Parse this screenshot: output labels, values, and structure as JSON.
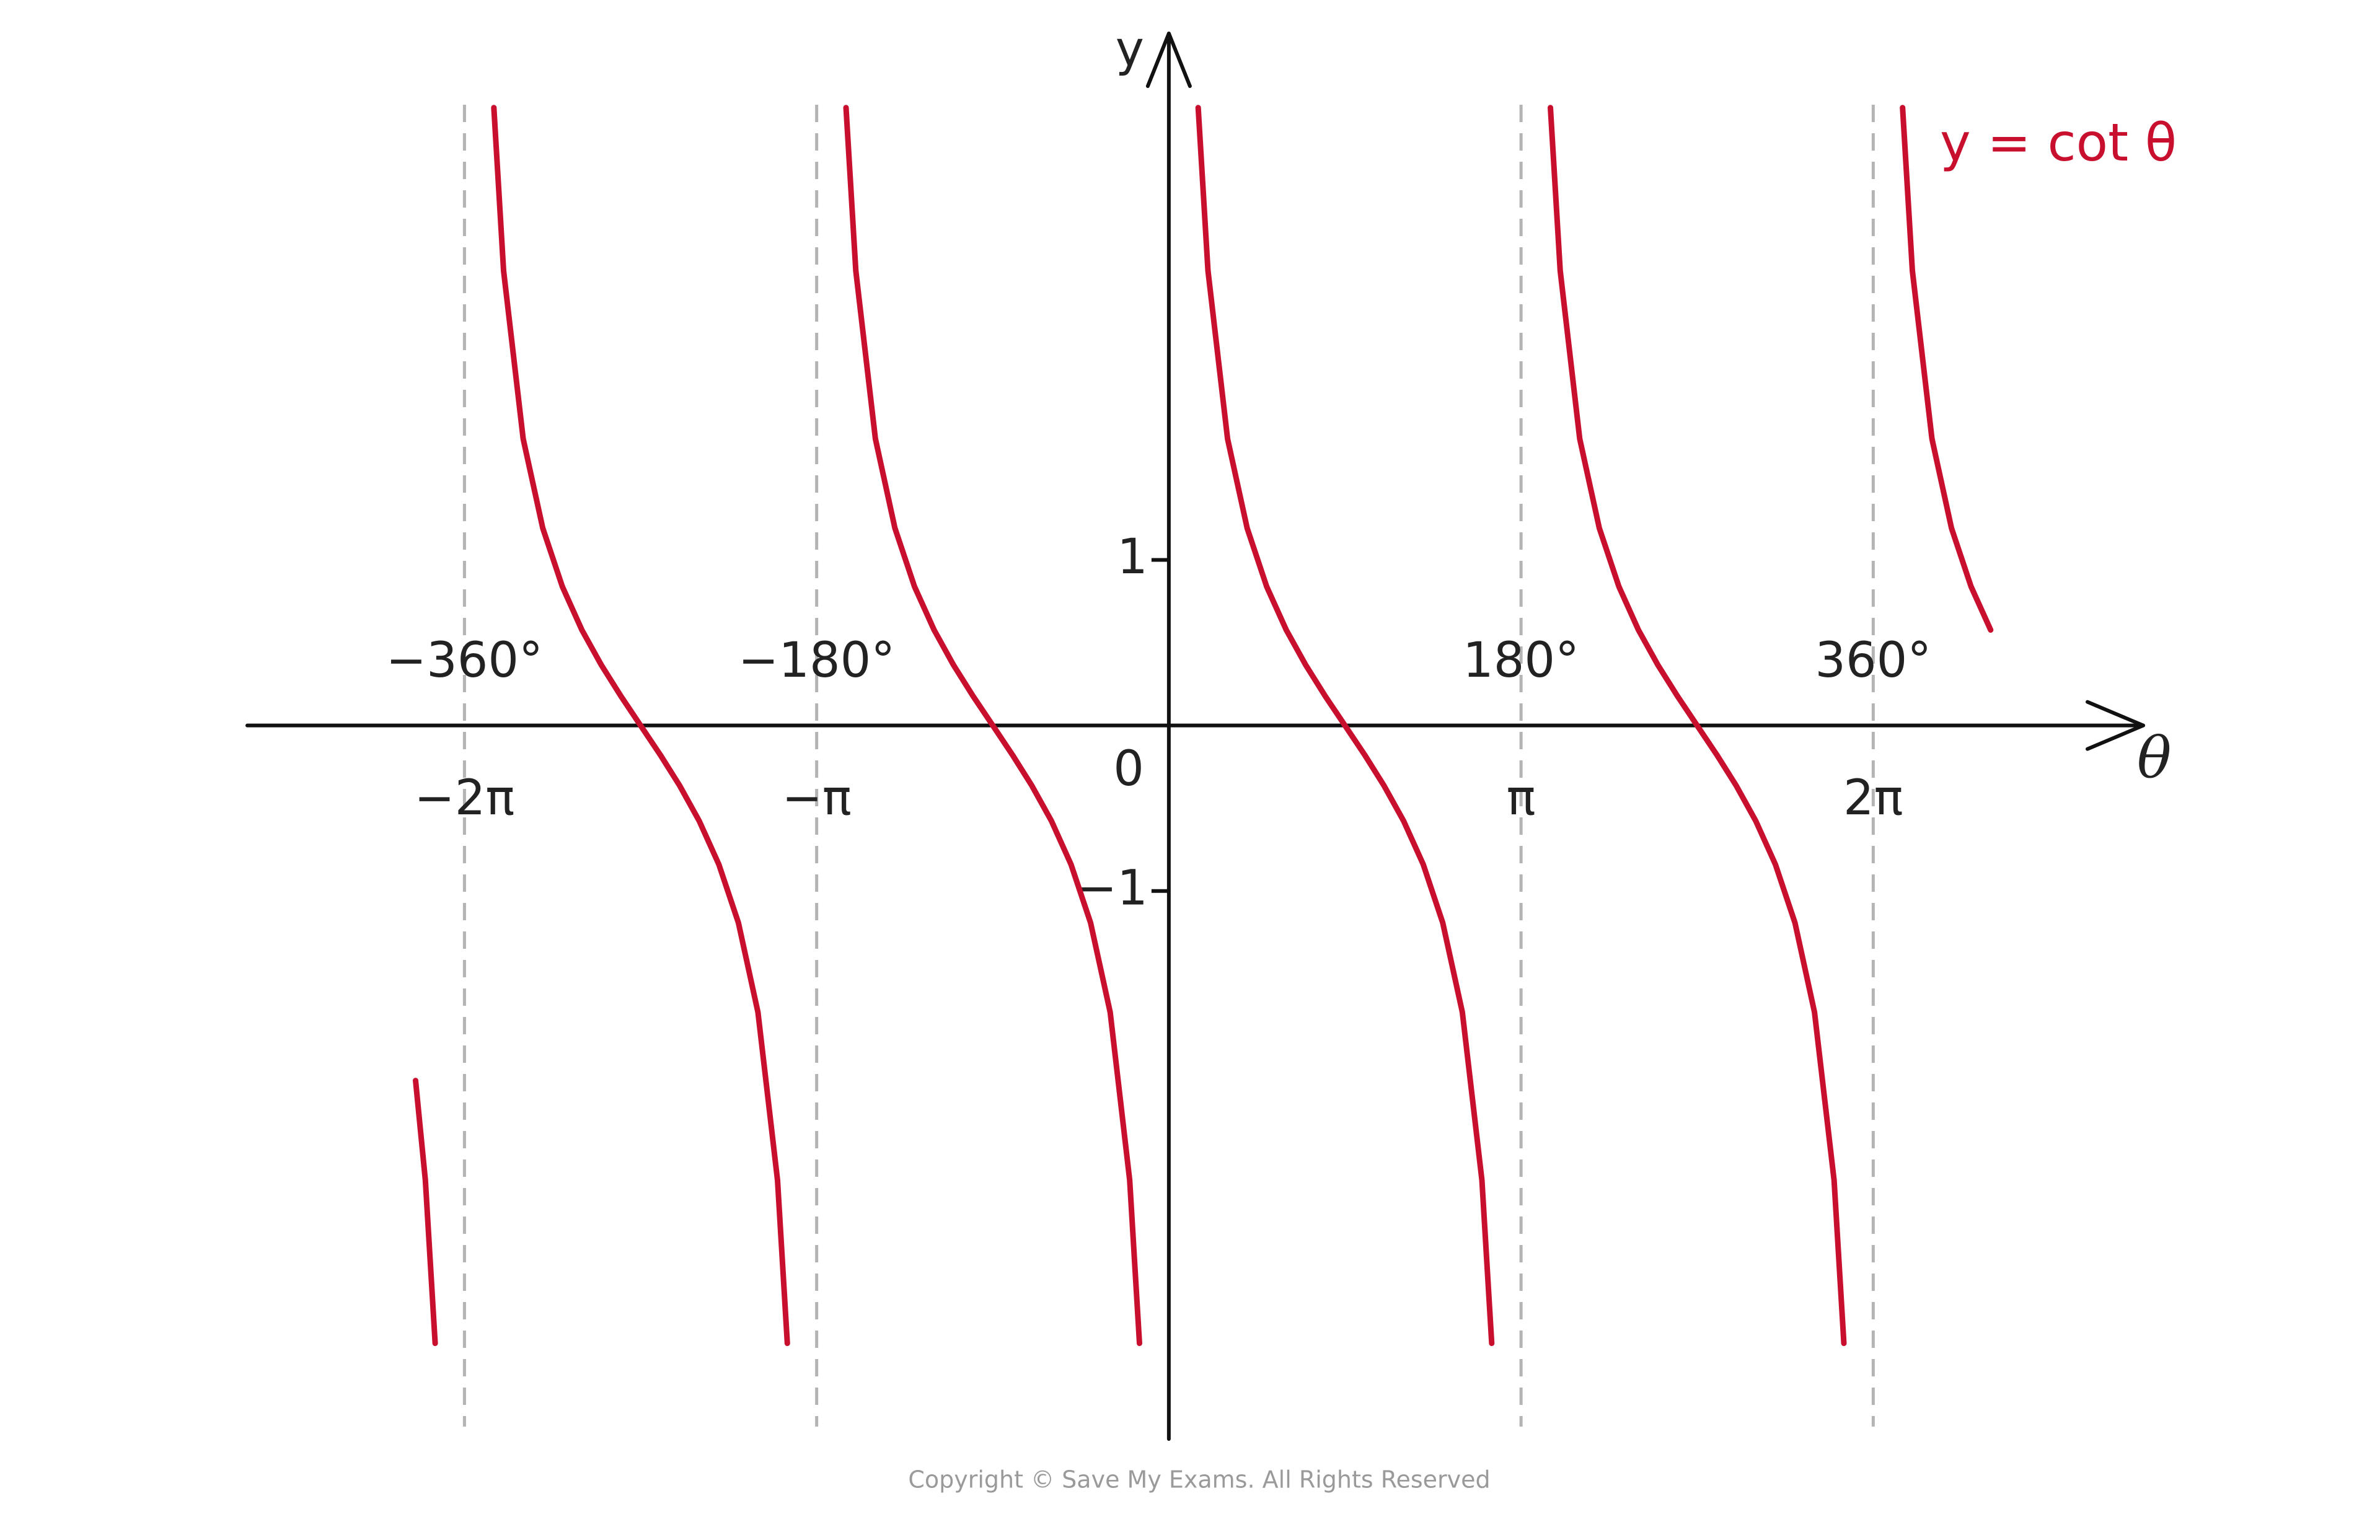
{
  "chart_data": {
    "type": "line",
    "x_label": "θ",
    "y_label": "y",
    "origin_label": "0",
    "footer": "Copyright © Save My Exams. All Rights Reserved",
    "xlim": [
      -471,
      498
    ],
    "ylim": [
      -4.31,
      4.18
    ],
    "xticks": [
      {
        "value": -360,
        "label": "−360°"
      },
      {
        "value": -180,
        "label": "−180°"
      },
      {
        "value": 180,
        "label": "180°"
      },
      {
        "value": 360,
        "label": "360°"
      }
    ],
    "xticks_radians": [
      "−2π",
      "−π",
      "π",
      "2π"
    ],
    "yticks": [
      1,
      {
        "value": -1,
        "label": "−1"
      }
    ],
    "asymptote_color": "#b4b4b4",
    "x": [
      -385,
      -380,
      -375,
      -360,
      -345,
      -340,
      -330,
      -320,
      -310,
      -300,
      -290,
      -280,
      -270,
      -260,
      -250,
      -240,
      -230,
      -220,
      -210,
      -200,
      -195,
      -180,
      -165,
      -160,
      -150,
      -140,
      -130,
      -120,
      -110,
      -100,
      -90,
      -80,
      -70,
      -60,
      -50,
      -40,
      -30,
      -20,
      -15,
      0,
      15,
      20,
      30,
      40,
      50,
      60,
      70,
      80,
      90,
      100,
      110,
      120,
      130,
      140,
      150,
      160,
      165,
      180,
      195,
      200,
      210,
      220,
      230,
      240,
      250,
      260,
      270,
      280,
      290,
      300,
      310,
      320,
      330,
      340,
      345,
      360,
      375,
      380,
      390,
      400,
      410,
      420
    ],
    "series": [
      {
        "name": "y = cot θ",
        "color": "#c8102e",
        "values": [
          -2.145,
          -2.747,
          -3.732,
          null,
          3.732,
          2.747,
          1.732,
          1.192,
          0.839,
          0.577,
          0.364,
          0.176,
          0,
          -0.176,
          -0.364,
          -0.577,
          -0.839,
          -1.192,
          -1.732,
          -2.747,
          -3.732,
          null,
          3.732,
          2.747,
          1.732,
          1.192,
          0.839,
          0.577,
          0.364,
          0.176,
          0,
          -0.176,
          -0.364,
          -0.577,
          -0.839,
          -1.192,
          -1.732,
          -2.747,
          -3.732,
          null,
          3.732,
          2.747,
          1.732,
          1.192,
          0.839,
          0.577,
          0.364,
          0.176,
          0,
          -0.176,
          -0.364,
          -0.577,
          -0.839,
          -1.192,
          -1.732,
          -2.747,
          -3.732,
          null,
          3.732,
          2.747,
          1.732,
          1.192,
          0.839,
          0.577,
          0.364,
          0.176,
          0,
          -0.176,
          -0.364,
          -0.577,
          -0.839,
          -1.192,
          -1.732,
          -2.747,
          -3.732,
          null,
          3.732,
          2.747,
          1.732,
          1.192,
          0.839,
          0.577
        ]
      }
    ]
  }
}
